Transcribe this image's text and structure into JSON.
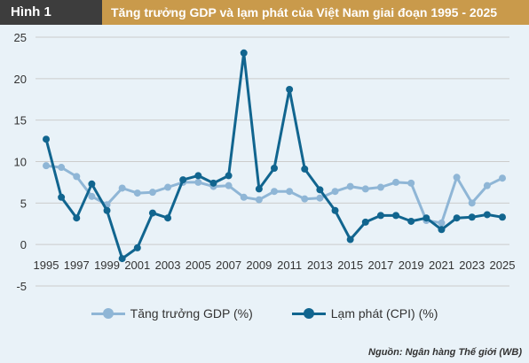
{
  "header": {
    "figure_label": "Hình 1",
    "title": "Tăng trưởng GDP và lạm phát của Việt Nam giai đoạn 1995 - 2025"
  },
  "source": "Nguồn: Ngân hàng Thế giới (WB)",
  "colors": {
    "gdp": "#8fb6d6",
    "cpi": "#11658f",
    "grid": "#cccccc"
  },
  "chart_data": {
    "type": "line",
    "x": [
      1995,
      1996,
      1997,
      1998,
      1999,
      2000,
      2001,
      2002,
      2003,
      2004,
      2005,
      2006,
      2007,
      2008,
      2009,
      2010,
      2011,
      2012,
      2013,
      2014,
      2015,
      2016,
      2017,
      2018,
      2019,
      2020,
      2021,
      2022,
      2023,
      2024,
      2025
    ],
    "x_tick_labels": [
      "1995",
      "1997",
      "1999",
      "2001",
      "2003",
      "2005",
      "2007",
      "2009",
      "2011",
      "2013",
      "2015",
      "2017",
      "2019",
      "2021",
      "2023",
      "2025"
    ],
    "y_ticks": [
      "25",
      "20",
      "15",
      "10",
      "5",
      "0",
      "-5"
    ],
    "ylim": [
      -5,
      25
    ],
    "grid": true,
    "legend_position": "bottom",
    "series": [
      {
        "name": "Tăng trưởng GDP (%)",
        "color": "#8fb6d6",
        "values": [
          9.5,
          9.3,
          8.2,
          5.8,
          4.8,
          6.8,
          6.2,
          6.3,
          6.9,
          7.5,
          7.5,
          7.0,
          7.1,
          5.7,
          5.4,
          6.4,
          6.4,
          5.5,
          5.6,
          6.4,
          7.0,
          6.7,
          6.9,
          7.5,
          7.4,
          2.9,
          2.6,
          8.1,
          5.0,
          7.1,
          8.0
        ]
      },
      {
        "name": "Lạm phát (CPI) (%)",
        "color": "#11658f",
        "values": [
          12.7,
          5.7,
          3.2,
          7.3,
          4.1,
          -1.7,
          -0.4,
          3.8,
          3.2,
          7.8,
          8.3,
          7.4,
          8.3,
          23.1,
          6.7,
          9.2,
          18.7,
          9.1,
          6.6,
          4.1,
          0.6,
          2.7,
          3.5,
          3.5,
          2.8,
          3.2,
          1.8,
          3.2,
          3.3,
          3.6,
          3.3
        ]
      }
    ]
  }
}
